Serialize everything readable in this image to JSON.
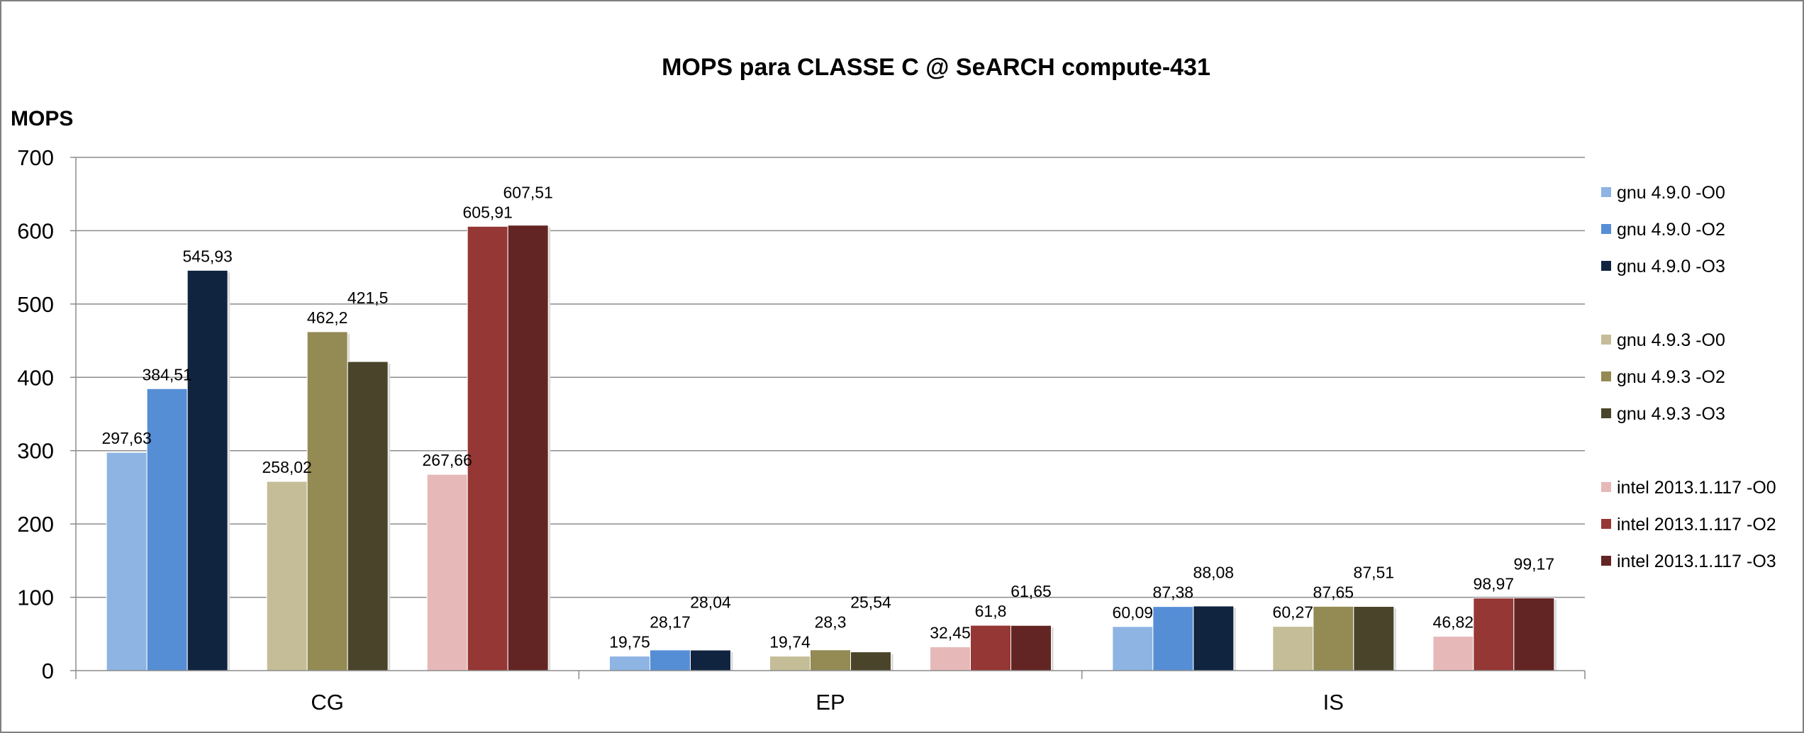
{
  "chart_data": {
    "type": "bar",
    "title": "MOPS para CLASSE C @ SeARCH compute-431",
    "ylabel": "MOPS",
    "xlabel": "",
    "ylim": [
      0,
      700
    ],
    "yticks": [
      0,
      100,
      200,
      300,
      400,
      500,
      600,
      700
    ],
    "grid": true,
    "legend_position": "right",
    "categories": [
      "CG",
      "EP",
      "IS"
    ],
    "series": [
      {
        "name": "gnu 4.9.0 -O0",
        "color": "#8EB4E3",
        "values": [
          297.63,
          19.75,
          60.09
        ],
        "labels": [
          "297,63",
          "19,75",
          "60,09"
        ]
      },
      {
        "name": "gnu 4.9.0 -O2",
        "color": "#558ED5",
        "values": [
          384.51,
          28.17,
          87.38
        ],
        "labels": [
          "384,51",
          "28,17",
          "87,38"
        ]
      },
      {
        "name": "gnu 4.9.0 -O3",
        "color": "#10243F",
        "values": [
          545.93,
          28.04,
          88.08
        ],
        "labels": [
          "545,93",
          "28,04",
          "88,08"
        ]
      },
      {
        "name": "gnu 4.9.3 -O0",
        "color": "#C4BD97",
        "values": [
          258.02,
          19.74,
          60.27
        ],
        "labels": [
          "258,02",
          "19,74",
          "60,27"
        ]
      },
      {
        "name": "gnu 4.9.3 -O2",
        "color": "#948A54",
        "values": [
          462.2,
          28.3,
          87.65
        ],
        "labels": [
          "462,2",
          "28,3",
          "87,65"
        ]
      },
      {
        "name": "gnu 4.9.3 -O3",
        "color": "#4A452A",
        "values": [
          421.5,
          25.54,
          87.51
        ],
        "labels": [
          "421,5",
          "25,54",
          "87,51"
        ]
      },
      {
        "name": "intel 2013.1.117 -O0",
        "color": "#E6B9B8",
        "values": [
          267.66,
          32.45,
          46.82
        ],
        "labels": [
          "267,66",
          "32,45",
          "46,82"
        ]
      },
      {
        "name": "intel 2013.1.117 -O2",
        "color": "#953735",
        "values": [
          605.91,
          61.8,
          98.97
        ],
        "labels": [
          "605,91",
          "61,8",
          "98,97"
        ]
      },
      {
        "name": "intel 2013.1.117 -O3",
        "color": "#632523",
        "values": [
          607.51,
          61.65,
          99.17
        ],
        "labels": [
          "607,51",
          "61,65",
          "99,17"
        ]
      }
    ]
  }
}
